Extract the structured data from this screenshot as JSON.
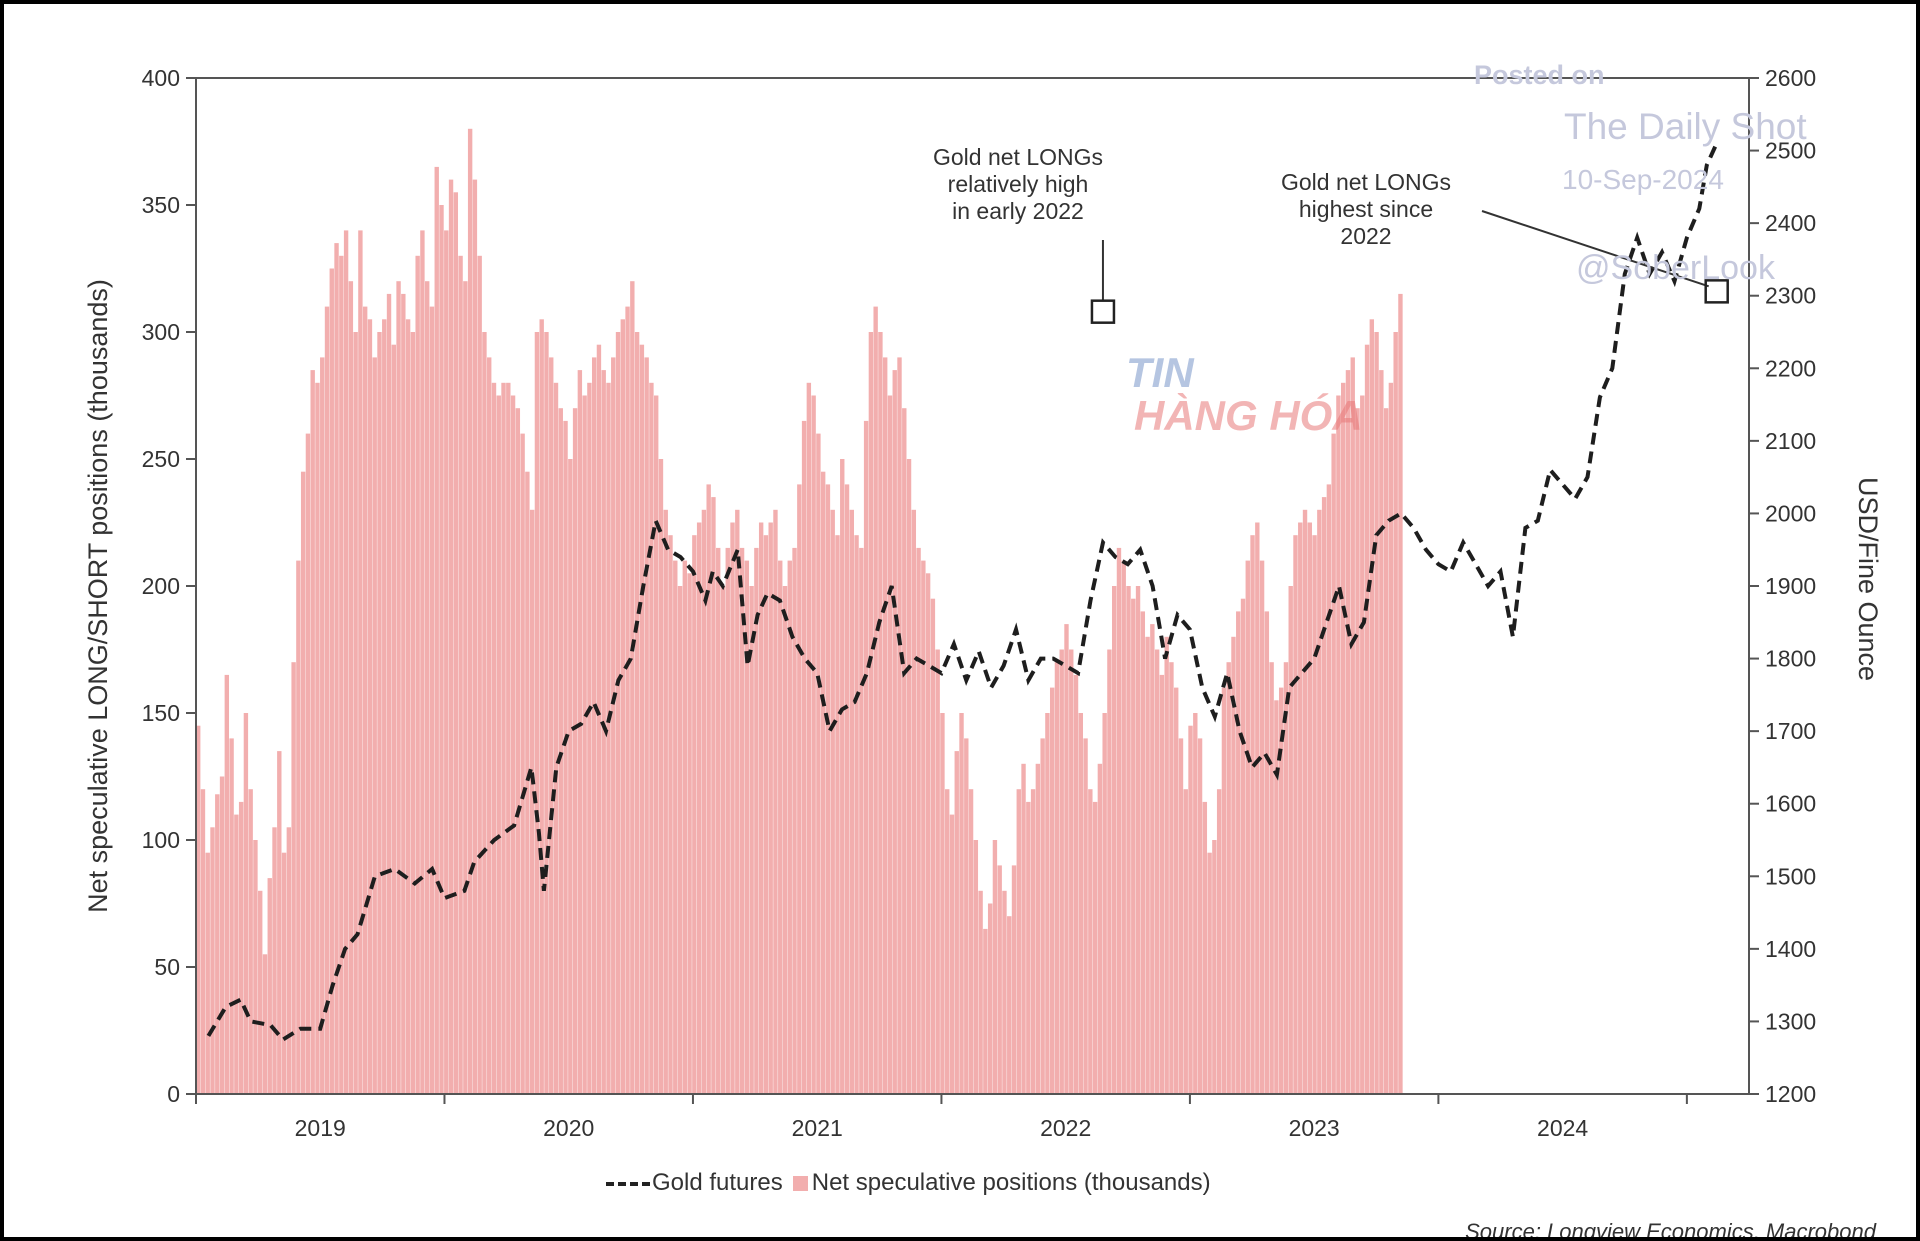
{
  "chart_data": {
    "type": "bar+line",
    "left_axis": {
      "label": "Net speculative LONG/SHORT positions (thousands)",
      "ylim": [
        0,
        400
      ],
      "ticks": [
        0,
        50,
        100,
        150,
        200,
        250,
        300,
        350,
        400
      ]
    },
    "right_axis": {
      "label": "USD/Fine Ounce",
      "ylim": [
        1200,
        2600
      ],
      "ticks": [
        1200,
        1300,
        1400,
        1500,
        1600,
        1700,
        1800,
        1900,
        2000,
        2100,
        2200,
        2300,
        2400,
        2500,
        2600
      ]
    },
    "x_axis": {
      "range": [
        2018.5,
        2024.75
      ],
      "tick_labels": [
        "2019",
        "2020",
        "2021",
        "2022",
        "2023",
        "2024"
      ],
      "label_positions": [
        2019.0,
        2020.0,
        2021.0,
        2022.0,
        2023.0,
        2024.0
      ]
    },
    "legend": {
      "line_label": "Gold futures",
      "bar_label": "Net speculative positions (thousands)"
    },
    "bar_series": {
      "name": "Net speculative positions (thousands)",
      "start": 2018.5,
      "step": 0.0192,
      "values": [
        145,
        120,
        95,
        105,
        118,
        125,
        165,
        140,
        110,
        115,
        150,
        120,
        100,
        80,
        55,
        85,
        105,
        135,
        95,
        105,
        170,
        210,
        245,
        260,
        285,
        280,
        290,
        310,
        325,
        335,
        330,
        340,
        320,
        300,
        340,
        310,
        305,
        290,
        300,
        305,
        315,
        295,
        320,
        315,
        305,
        300,
        330,
        340,
        320,
        310,
        365,
        350,
        340,
        360,
        355,
        330,
        320,
        380,
        360,
        330,
        300,
        290,
        280,
        275,
        280,
        280,
        275,
        270,
        260,
        245,
        230,
        300,
        305,
        300,
        290,
        280,
        270,
        265,
        250,
        270,
        285,
        275,
        280,
        290,
        295,
        285,
        280,
        290,
        300,
        305,
        310,
        320,
        300,
        295,
        290,
        280,
        275,
        250,
        230,
        220,
        210,
        200,
        210,
        205,
        220,
        225,
        230,
        240,
        235,
        215,
        200,
        215,
        225,
        230,
        215,
        210,
        200,
        215,
        225,
        220,
        225,
        230,
        210,
        200,
        210,
        215,
        240,
        265,
        280,
        275,
        260,
        245,
        240,
        230,
        220,
        250,
        240,
        230,
        220,
        215,
        265,
        300,
        310,
        300,
        290,
        275,
        285,
        290,
        270,
        250,
        230,
        215,
        210,
        205,
        195,
        175,
        150,
        120,
        110,
        135,
        150,
        140,
        120,
        100,
        80,
        65,
        75,
        100,
        90,
        80,
        70,
        90,
        120,
        130,
        115,
        120,
        130,
        140,
        150,
        160,
        170,
        175,
        185,
        175,
        165,
        150,
        140,
        120,
        115,
        130,
        150,
        175,
        200,
        215,
        210,
        200,
        195,
        200,
        190,
        180,
        185,
        175,
        165,
        180,
        170,
        160,
        140,
        120,
        145,
        150,
        140,
        115,
        95,
        100,
        120,
        160,
        170,
        180,
        190,
        195,
        210,
        220,
        225,
        210,
        190,
        170,
        155,
        160,
        170,
        200,
        220,
        225,
        230,
        225,
        220,
        230,
        235,
        240,
        260,
        275,
        280,
        285,
        290,
        270,
        275,
        295,
        305,
        300,
        285,
        270,
        280,
        300,
        315
      ]
    },
    "line_series": {
      "name": "Gold futures",
      "points": [
        [
          2018.55,
          1280
        ],
        [
          2018.62,
          1320
        ],
        [
          2018.68,
          1330
        ],
        [
          2018.72,
          1300
        ],
        [
          2018.8,
          1295
        ],
        [
          2018.85,
          1275
        ],
        [
          2018.92,
          1290
        ],
        [
          2019.0,
          1290
        ],
        [
          2019.05,
          1350
        ],
        [
          2019.1,
          1400
        ],
        [
          2019.15,
          1420
        ],
        [
          2019.22,
          1500
        ],
        [
          2019.3,
          1510
        ],
        [
          2019.38,
          1490
        ],
        [
          2019.45,
          1510
        ],
        [
          2019.5,
          1470
        ],
        [
          2019.58,
          1480
        ],
        [
          2019.62,
          1520
        ],
        [
          2019.7,
          1550
        ],
        [
          2019.78,
          1570
        ],
        [
          2019.85,
          1650
        ],
        [
          2019.88,
          1560
        ],
        [
          2019.9,
          1480
        ],
        [
          2019.95,
          1650
        ],
        [
          2020.0,
          1700
        ],
        [
          2020.05,
          1710
        ],
        [
          2020.1,
          1740
        ],
        [
          2020.15,
          1700
        ],
        [
          2020.2,
          1770
        ],
        [
          2020.25,
          1800
        ],
        [
          2020.3,
          1900
        ],
        [
          2020.35,
          1990
        ],
        [
          2020.4,
          1950
        ],
        [
          2020.45,
          1940
        ],
        [
          2020.5,
          1920
        ],
        [
          2020.55,
          1880
        ],
        [
          2020.58,
          1920
        ],
        [
          2020.62,
          1900
        ],
        [
          2020.68,
          1950
        ],
        [
          2020.72,
          1790
        ],
        [
          2020.76,
          1860
        ],
        [
          2020.8,
          1890
        ],
        [
          2020.85,
          1880
        ],
        [
          2020.9,
          1830
        ],
        [
          2020.95,
          1800
        ],
        [
          2021.0,
          1780
        ],
        [
          2021.05,
          1700
        ],
        [
          2021.1,
          1730
        ],
        [
          2021.15,
          1740
        ],
        [
          2021.2,
          1780
        ],
        [
          2021.25,
          1850
        ],
        [
          2021.3,
          1900
        ],
        [
          2021.35,
          1780
        ],
        [
          2021.4,
          1800
        ],
        [
          2021.45,
          1790
        ],
        [
          2021.5,
          1780
        ],
        [
          2021.55,
          1820
        ],
        [
          2021.6,
          1770
        ],
        [
          2021.65,
          1810
        ],
        [
          2021.7,
          1760
        ],
        [
          2021.75,
          1790
        ],
        [
          2021.8,
          1840
        ],
        [
          2021.85,
          1770
        ],
        [
          2021.9,
          1800
        ],
        [
          2021.95,
          1800
        ],
        [
          2022.0,
          1790
        ],
        [
          2022.05,
          1780
        ],
        [
          2022.1,
          1880
        ],
        [
          2022.15,
          1960
        ],
        [
          2022.2,
          1940
        ],
        [
          2022.25,
          1930
        ],
        [
          2022.3,
          1950
        ],
        [
          2022.35,
          1900
        ],
        [
          2022.4,
          1800
        ],
        [
          2022.45,
          1860
        ],
        [
          2022.5,
          1840
        ],
        [
          2022.55,
          1760
        ],
        [
          2022.6,
          1720
        ],
        [
          2022.65,
          1780
        ],
        [
          2022.7,
          1700
        ],
        [
          2022.75,
          1650
        ],
        [
          2022.8,
          1670
        ],
        [
          2022.85,
          1640
        ],
        [
          2022.9,
          1760
        ],
        [
          2022.95,
          1780
        ],
        [
          2023.0,
          1800
        ],
        [
          2023.05,
          1850
        ],
        [
          2023.1,
          1900
        ],
        [
          2023.15,
          1820
        ],
        [
          2023.2,
          1850
        ],
        [
          2023.25,
          1970
        ],
        [
          2023.3,
          1990
        ],
        [
          2023.35,
          2000
        ],
        [
          2023.4,
          1980
        ],
        [
          2023.45,
          1950
        ],
        [
          2023.5,
          1930
        ],
        [
          2023.55,
          1920
        ],
        [
          2023.6,
          1960
        ],
        [
          2023.65,
          1930
        ],
        [
          2023.7,
          1900
        ],
        [
          2023.75,
          1920
        ],
        [
          2023.8,
          1830
        ],
        [
          2023.85,
          1980
        ],
        [
          2023.9,
          1990
        ],
        [
          2023.95,
          2060
        ],
        [
          2024.0,
          2040
        ],
        [
          2024.05,
          2020
        ],
        [
          2024.1,
          2050
        ],
        [
          2024.15,
          2160
        ],
        [
          2024.2,
          2200
        ],
        [
          2024.25,
          2330
        ],
        [
          2024.3,
          2380
        ],
        [
          2024.35,
          2330
        ],
        [
          2024.4,
          2360
        ],
        [
          2024.45,
          2320
        ],
        [
          2024.5,
          2380
        ],
        [
          2024.55,
          2420
        ],
        [
          2024.58,
          2480
        ],
        [
          2024.62,
          2510
        ]
      ]
    },
    "markers": [
      {
        "x": 2022.15,
        "y": 308,
        "annotation": "Gold net LONGs\nrelatively high\nin early 2022"
      },
      {
        "x": 2024.62,
        "y": 316,
        "annotation": "Gold net LONGs\nhighest since\n2022"
      }
    ]
  },
  "watermark": {
    "posted": "Posted on",
    "site": "The Daily Shot",
    "date": "10-Sep-2024",
    "handle": "@SoberLook"
  },
  "logo": {
    "line1": "TIN",
    "line2": "HÀNG HÓA"
  },
  "source": "Source: Longview Economics, Macrobond"
}
